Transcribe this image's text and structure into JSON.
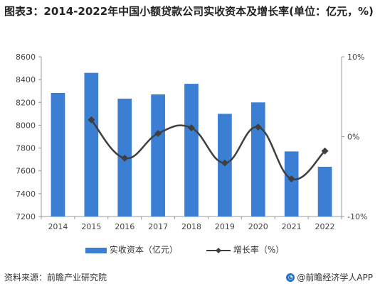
{
  "title": "图表3：2014-2022年中国小额贷款公司实收资本及增长率(单位：亿元，%)",
  "footer": {
    "source": "资料来源：前瞻产业研究院",
    "brand": "@前瞻经济学人APP"
  },
  "colors": {
    "bar": "#3b7fd4",
    "line": "#3f3f3f",
    "axis": "#999999",
    "brand": "#1f73c9"
  },
  "chart_data": {
    "type": "bar+line",
    "categories": [
      "2014",
      "2015",
      "2016",
      "2017",
      "2018",
      "2019",
      "2020",
      "2021",
      "2022"
    ],
    "series": [
      {
        "name": "实收资本（亿元）",
        "type": "bar",
        "axis": "left",
        "values": [
          8283,
          8459,
          8233,
          8270,
          8363,
          8100,
          8200,
          7770,
          7636
        ]
      },
      {
        "name": "增长率（%）",
        "type": "line",
        "axis": "right",
        "values": [
          null,
          2.1,
          -2.7,
          0.4,
          1.1,
          -3.3,
          1.2,
          -5.3,
          -1.8
        ]
      }
    ],
    "left_axis": {
      "min": 7200,
      "max": 8600,
      "ticks": [
        "7200",
        "7400",
        "7600",
        "7800",
        "8000",
        "8200",
        "8400",
        "8600"
      ]
    },
    "right_axis": {
      "min": -10,
      "max": 10,
      "ticks": [
        "-10%",
        "0%",
        "10%"
      ]
    }
  }
}
